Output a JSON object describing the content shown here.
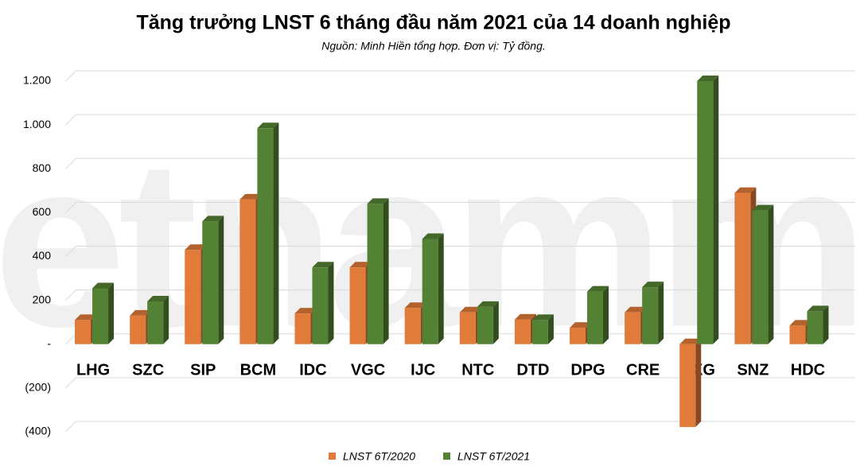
{
  "chart_data": {
    "type": "bar",
    "title": "Tăng trưởng LNST 6 tháng đầu năm 2021 của 14 doanh nghiệp",
    "subtitle": "Nguồn: Minh Hiền tổng hợp. Đơn vị: Tỷ đồng.",
    "watermark": "vietnammới",
    "categories": [
      "LHG",
      "SZC",
      "SIP",
      "BCM",
      "IDC",
      "VGC",
      "IJC",
      "NTC",
      "DTD",
      "DPG",
      "CRE",
      "DXG",
      "SNZ",
      "HDC"
    ],
    "series": [
      {
        "name": "LNST 6T/2020",
        "color": "#e07b39",
        "values": [
          110,
          130,
          430,
          660,
          140,
          350,
          165,
          145,
          112,
          75,
          145,
          -378,
          690,
          85
        ]
      },
      {
        "name": "LNST 6T/2021",
        "color": "#548235",
        "values": [
          255,
          195,
          560,
          985,
          350,
          640,
          480,
          170,
          110,
          240,
          260,
          1200,
          610,
          150
        ]
      }
    ],
    "ylim": [
      -400,
      1200
    ],
    "yticks": [
      {
        "value": 1200,
        "label": "1.200"
      },
      {
        "value": 1000,
        "label": "1.000"
      },
      800,
      600,
      400,
      200,
      {
        "value": 0,
        "label": "-"
      },
      {
        "value": -200,
        "label": "(200)"
      },
      {
        "value": -400,
        "label": "(400)"
      }
    ],
    "grid": true,
    "legend": "bottom"
  }
}
